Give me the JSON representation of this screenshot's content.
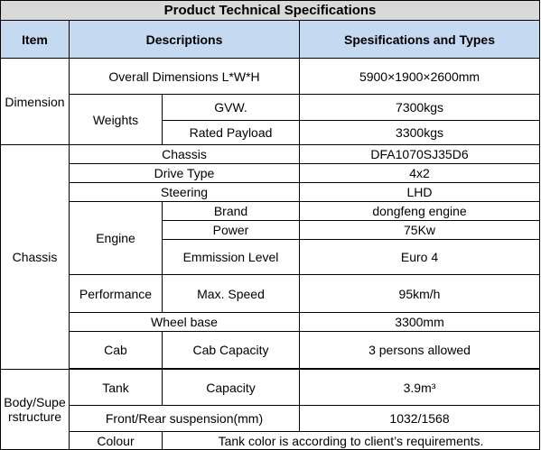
{
  "title": "Product Technical Specifications",
  "headers": {
    "item": "Item",
    "descriptions": "Descriptions",
    "specs": "Spesifications and Types"
  },
  "dimension": {
    "group": "Dimension",
    "overall_label": "Overall Dimensions L*W*H",
    "overall_value": "5900×1900×2600mm",
    "weights_label": "Weights",
    "gvw_label": "GVW.",
    "gvw_value": "7300kgs",
    "payload_label": "Rated Payload",
    "payload_value": "3300kgs"
  },
  "chassis": {
    "group": "Chassis",
    "chassis_label": "Chassis",
    "chassis_value": "DFA1070SJ35D6",
    "drive_label": "Drive Type",
    "drive_value": "4x2",
    "steering_label": "Steering",
    "steering_value": "LHD",
    "engine_label": "Engine",
    "brand_label": "Brand",
    "brand_value": "dongfeng  engine",
    "power_label": "Power",
    "power_value": "75Kw",
    "emission_label": "Emmission Level",
    "emission_value": "Euro 4",
    "performance_label": "Performance",
    "speed_label": "Max. Speed",
    "speed_value": "95km/h",
    "wheelbase_label": "Wheel base",
    "wheelbase_value": "3300mm",
    "cab_label": "Cab",
    "cab_capacity_label": "Cab Capacity",
    "cab_capacity_value": "3 persons allowed"
  },
  "body": {
    "group": "Body/Superstructure",
    "tank_label": "Tank",
    "tank_capacity_label": "Capacity",
    "tank_capacity_value": "3.9m³",
    "suspension_label": "Front/Rear suspension(mm)",
    "suspension_value": "1032/1568",
    "colour_label": "Colour",
    "colour_value": "Tank color is according to client’s requirements."
  }
}
